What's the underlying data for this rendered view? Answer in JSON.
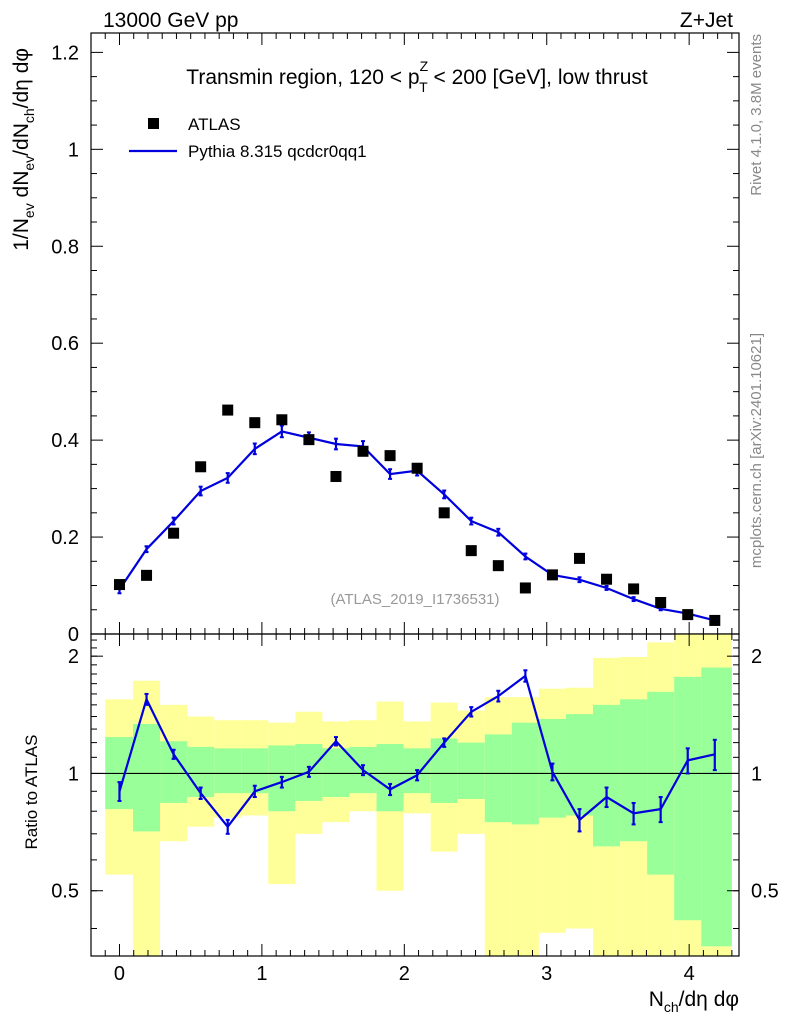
{
  "header": {
    "energy_label": "13000 GeV pp",
    "process_label": "Z+Jet"
  },
  "side_text": {
    "rivet": "Rivet 4.1.0,  3.8M events",
    "mcplots": "mcplots.cern.ch [arXiv:2401.10621]"
  },
  "chart_data": [
    {
      "type": "scatter",
      "title": "Transmin region, 120 < p_T^Z < 200 [GeV], low thrust",
      "title_parts": {
        "before": "Transmin region, 120 < p",
        "sup": "Z",
        "sub": "T",
        "after": " < 200 [GeV], low thrust"
      },
      "watermark": "(ATLAS_2019_I1736531)",
      "ylabel": "1/N_ev dN_ev/dN_ch/dη dφ",
      "ylabel_parts": {
        "a": "1/N",
        "a_sub": "ev",
        "b": " dN",
        "b_sub": "ev",
        "c": "/dN",
        "c_sub": "ch",
        "d": "/dη dφ"
      },
      "xlim": [
        -0.2,
        4.35
      ],
      "ylim": [
        0,
        1.24
      ],
      "yticks": [
        0,
        0.2,
        0.4,
        0.6,
        0.8,
        1,
        1.2
      ],
      "ytick_labels": [
        "0",
        "0.2",
        "0.4",
        "0.6",
        "0.8",
        "1",
        "1.2"
      ],
      "legend": [
        {
          "label": "ATLAS",
          "marker": "square",
          "color": "#000000"
        },
        {
          "label": "Pythia 8.315 qcdcr0qq1",
          "marker": "line",
          "color": "#0000dd"
        }
      ],
      "x": [
        0.0,
        0.19,
        0.38,
        0.57,
        0.76,
        0.95,
        1.14,
        1.33,
        1.52,
        1.71,
        1.9,
        2.09,
        2.28,
        2.47,
        2.66,
        2.85,
        3.04,
        3.23,
        3.42,
        3.61,
        3.8,
        3.99,
        4.18
      ],
      "series": [
        {
          "name": "ATLAS",
          "values": [
            0.102,
            0.121,
            0.208,
            0.345,
            0.462,
            0.436,
            0.442,
            0.401,
            0.325,
            0.377,
            0.368,
            0.342,
            0.25,
            0.172,
            0.141,
            0.095,
            0.122,
            0.156,
            0.113,
            0.093,
            0.065,
            0.04,
            0.028
          ]
        },
        {
          "name": "Pythia 8.315 qcdcr0qq1",
          "values": [
            0.092,
            0.175,
            0.233,
            0.295,
            0.322,
            0.382,
            0.418,
            0.405,
            0.392,
            0.387,
            0.33,
            0.337,
            0.288,
            0.233,
            0.21,
            0.16,
            0.122,
            0.112,
            0.095,
            0.072,
            0.052,
            0.042,
            0.028
          ],
          "errors": [
            0.008,
            0.006,
            0.007,
            0.009,
            0.01,
            0.011,
            0.012,
            0.011,
            0.011,
            0.011,
            0.01,
            0.01,
            0.008,
            0.007,
            0.007,
            0.006,
            0.005,
            0.005,
            0.004,
            0.004,
            0.003,
            0.003,
            0.002
          ]
        }
      ]
    },
    {
      "type": "line",
      "ylabel": "Ratio to ATLAS",
      "xlabel": "N_ch/dη dφ",
      "xlabel_parts": {
        "a": "N",
        "a_sub": "ch",
        "b": "/dη dφ"
      },
      "xlim": [
        -0.2,
        4.35
      ],
      "ylim": [
        0.34,
        2.28
      ],
      "xticks": [
        0,
        1,
        2,
        3,
        4
      ],
      "xtick_labels": [
        "0",
        "1",
        "2",
        "3",
        "4"
      ],
      "yticks": [
        0.5,
        1,
        2
      ],
      "ytick_labels": [
        "0.5",
        "1",
        "2"
      ],
      "bands": {
        "bin_edges": [
          -0.1,
          0.095,
          0.285,
          0.475,
          0.665,
          0.855,
          1.045,
          1.235,
          1.425,
          1.615,
          1.805,
          1.995,
          2.185,
          2.375,
          2.565,
          2.755,
          2.945,
          3.135,
          3.325,
          3.515,
          3.705,
          3.895,
          4.085,
          4.3
        ],
        "yellow_low": [
          0.55,
          0.3,
          0.67,
          0.73,
          0.77,
          0.78,
          0.52,
          0.7,
          0.75,
          0.8,
          0.5,
          0.79,
          0.63,
          0.7,
          0.3,
          0.32,
          0.39,
          0.4,
          0.3,
          0.3,
          0.3,
          0.3,
          0.3
        ],
        "yellow_high": [
          1.55,
          1.73,
          1.5,
          1.4,
          1.37,
          1.37,
          1.35,
          1.44,
          1.36,
          1.37,
          1.53,
          1.36,
          1.52,
          1.45,
          1.57,
          1.57,
          1.65,
          1.66,
          1.98,
          1.99,
          2.17,
          2.43,
          2.43
        ],
        "green_low": [
          0.81,
          0.71,
          0.84,
          0.87,
          0.89,
          0.89,
          0.8,
          0.85,
          0.87,
          0.89,
          0.8,
          0.89,
          0.84,
          0.86,
          0.75,
          0.74,
          0.77,
          0.78,
          0.65,
          0.67,
          0.55,
          0.42,
          0.36
        ],
        "green_high": [
          1.24,
          1.34,
          1.21,
          1.17,
          1.16,
          1.16,
          1.18,
          1.19,
          1.16,
          1.17,
          1.19,
          1.16,
          1.23,
          1.2,
          1.26,
          1.35,
          1.38,
          1.42,
          1.5,
          1.55,
          1.62,
          1.77,
          1.87
        ]
      },
      "series": [
        {
          "name": "Pythia 8.315 qcdcr0qq1 / ATLAS",
          "values": [
            0.9,
            1.55,
            1.12,
            0.89,
            0.73,
            0.9,
            0.95,
            1.01,
            1.21,
            1.02,
            0.91,
            0.99,
            1.2,
            1.44,
            1.58,
            1.78,
            1.01,
            0.76,
            0.87,
            0.79,
            0.81,
            1.08,
            1.12
          ],
          "errors": [
            0.05,
            0.05,
            0.03,
            0.03,
            0.03,
            0.03,
            0.03,
            0.03,
            0.03,
            0.03,
            0.03,
            0.03,
            0.03,
            0.04,
            0.05,
            0.06,
            0.05,
            0.05,
            0.05,
            0.05,
            0.06,
            0.08,
            0.1
          ]
        }
      ],
      "reference_line": 1
    }
  ],
  "colors": {
    "data": "#000000",
    "mc": "#0000dd",
    "band_inner": "#99ff99",
    "band_outer": "#ffff99",
    "axis": "#000000",
    "side_text": "#888888",
    "watermark": "#999999"
  }
}
